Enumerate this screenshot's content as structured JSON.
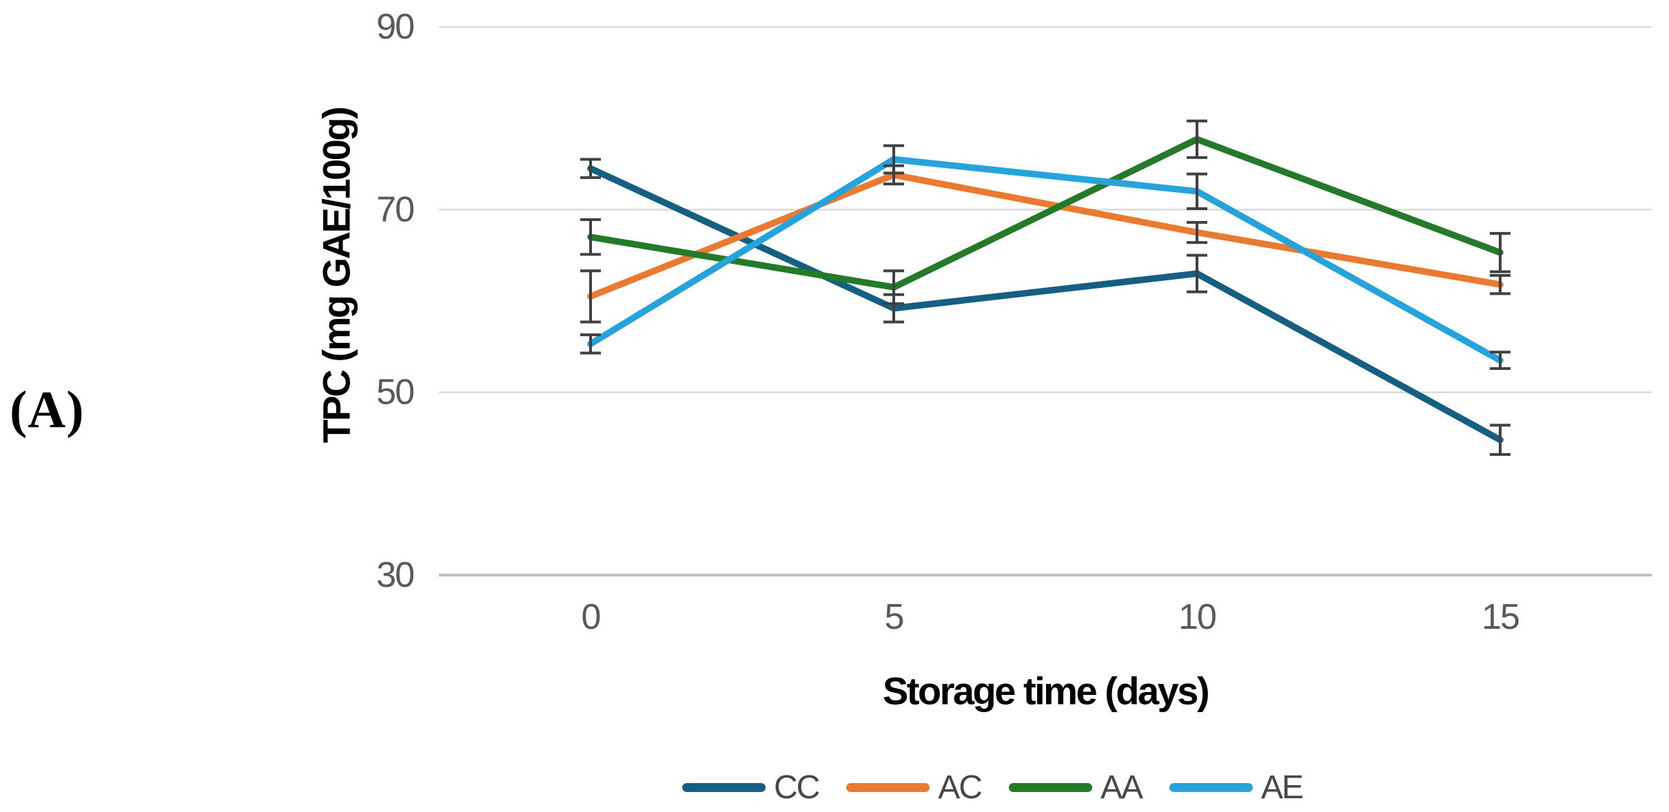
{
  "chart_data": {
    "type": "line",
    "panel_label": "(A)",
    "xlabel": "Storage time (days)",
    "ylabel": "TPC (mg GAE/100g)",
    "categories": [
      "0",
      "5",
      "10",
      "15"
    ],
    "ylim": [
      30,
      90
    ],
    "yticks": [
      90,
      70,
      50,
      30
    ],
    "grid": true,
    "legend_position": "bottom",
    "series": [
      {
        "name": "CC",
        "color": "#156082",
        "values": [
          74.5,
          59.2,
          63.0,
          44.8
        ],
        "errors": [
          1.0,
          1.5,
          2.0,
          1.6
        ]
      },
      {
        "name": "AC",
        "color": "#EB7A31",
        "values": [
          60.5,
          73.8,
          67.5,
          61.8
        ],
        "errors": [
          2.8,
          1.0,
          1.1,
          1.0
        ]
      },
      {
        "name": "AA",
        "color": "#247A28",
        "values": [
          67.0,
          61.5,
          77.7,
          65.3
        ],
        "errors": [
          1.9,
          1.8,
          2.0,
          2.1
        ]
      },
      {
        "name": "AE",
        "color": "#27A3DB",
        "values": [
          55.3,
          75.5,
          72.0,
          53.5
        ],
        "errors": [
          1.0,
          1.5,
          1.9,
          0.9
        ]
      }
    ],
    "style": {
      "background": "#FFFFFF",
      "gridline_color": "#D9D9D9",
      "axis_line_color": "#BFBFBF",
      "error_bar_color": "#404040",
      "tick_label_color": "#595959",
      "axis_title_color": "#000000",
      "legend_text_color": "#474747"
    }
  }
}
